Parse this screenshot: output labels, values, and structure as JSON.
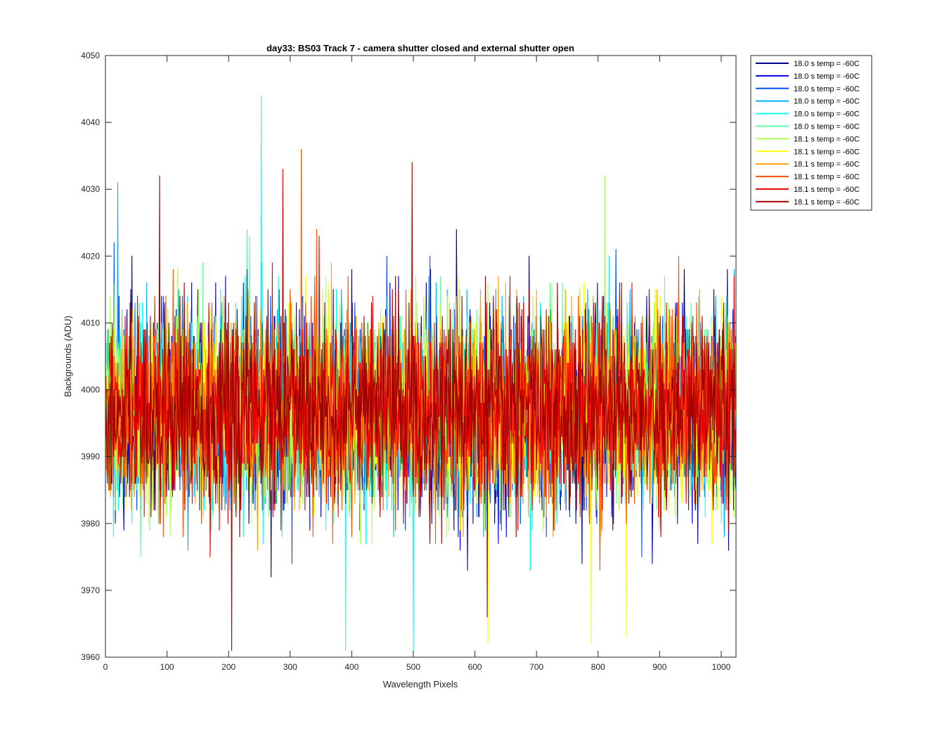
{
  "chart_data": {
    "type": "line",
    "title": "day33: BS03  Track 7 - camera shutter closed and external shutter open",
    "xlabel": "Wavelength Pixels",
    "ylabel": "Backgrounds (ADU)",
    "xlim": [
      0,
      1024
    ],
    "ylim": [
      3960,
      4050
    ],
    "xticks": [
      0,
      100,
      200,
      300,
      400,
      500,
      600,
      700,
      800,
      900,
      1000
    ],
    "yticks": [
      3960,
      3970,
      3980,
      3990,
      4000,
      4010,
      4020,
      4030,
      4040,
      4050
    ],
    "grid": false,
    "legend_position": "outside-top-right",
    "n_points": 1024,
    "series": [
      {
        "name": "18.0 s temp = -60C",
        "color": "#00008f",
        "mean": 3997,
        "std": 7
      },
      {
        "name": "18.0 s temp = -60C",
        "color": "#0000ef",
        "mean": 3997,
        "std": 7
      },
      {
        "name": "18.0 s temp = -60C",
        "color": "#0050ff",
        "mean": 3997,
        "std": 7
      },
      {
        "name": "18.0 s temp = -60C",
        "color": "#00afff",
        "mean": 3997,
        "std": 7
      },
      {
        "name": "18.0 s temp = -60C",
        "color": "#10ffef",
        "mean": 3997,
        "std": 7
      },
      {
        "name": "18.0 s temp = -60C",
        "color": "#60ff9f",
        "mean": 3997,
        "std": 7
      },
      {
        "name": "18.1 s temp = -60C",
        "color": "#afff50",
        "mean": 3997,
        "std": 7
      },
      {
        "name": "18.1 s temp = -60C",
        "color": "#ffff00",
        "mean": 3997,
        "std": 7
      },
      {
        "name": "18.1 s temp = -60C",
        "color": "#ffa000",
        "mean": 3997,
        "std": 7
      },
      {
        "name": "18.1 s temp = -60C",
        "color": "#ff5000",
        "mean": 3997,
        "std": 7
      },
      {
        "name": "18.1 s temp = -60C",
        "color": "#ef0000",
        "mean": 3997,
        "std": 7
      },
      {
        "name": "18.1 s temp = -60C",
        "color": "#a00000",
        "mean": 3997,
        "std": 7
      }
    ],
    "annotations": [
      {
        "series": 4,
        "x": 253,
        "y": 4044
      },
      {
        "series": 9,
        "x": 318,
        "y": 4036
      },
      {
        "series": 11,
        "x": 88,
        "y": 4032
      },
      {
        "series": 11,
        "x": 498,
        "y": 4034
      },
      {
        "series": 10,
        "x": 288,
        "y": 4033
      },
      {
        "series": 3,
        "x": 20,
        "y": 4031
      },
      {
        "series": 6,
        "x": 811,
        "y": 4032
      },
      {
        "series": 4,
        "x": 390,
        "y": 3961
      },
      {
        "series": 4,
        "x": 500,
        "y": 3961
      },
      {
        "series": 11,
        "x": 205,
        "y": 3961
      },
      {
        "series": 7,
        "x": 789,
        "y": 3962
      },
      {
        "series": 7,
        "x": 621,
        "y": 3962
      },
      {
        "series": 11,
        "x": 620,
        "y": 3966
      }
    ]
  }
}
